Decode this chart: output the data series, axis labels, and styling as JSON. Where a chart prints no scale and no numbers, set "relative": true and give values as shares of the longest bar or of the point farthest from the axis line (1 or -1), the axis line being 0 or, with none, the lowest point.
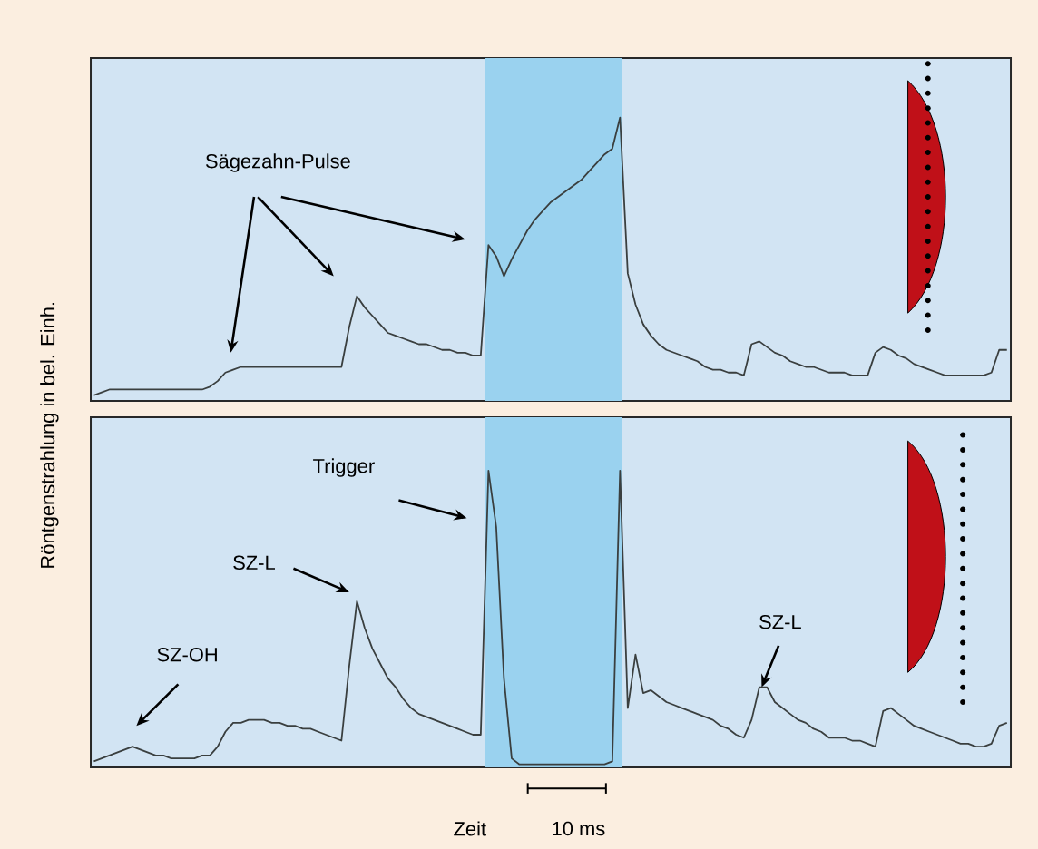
{
  "chart_data": [
    {
      "type": "line",
      "relative": true,
      "color": "#3a3f3f",
      "tick_labels": false,
      "ylabel": "Röntgenstrahlung in bel. Einh.",
      "annotations": [
        "Sägezahn-Pulse"
      ],
      "categories": [
        null,
        null,
        null,
        null,
        null,
        null,
        null,
        null,
        null,
        null,
        null,
        null,
        null,
        null,
        null,
        null,
        null,
        null,
        null,
        null,
        null,
        null,
        null,
        null,
        null,
        null,
        null,
        null,
        null,
        null,
        null,
        null,
        null,
        null,
        null,
        null,
        null,
        null,
        null,
        null,
        null,
        null,
        null,
        null,
        null,
        null,
        null,
        null,
        null,
        null,
        null,
        null,
        null,
        null,
        null,
        null,
        null,
        null,
        null,
        null,
        null,
        null,
        null,
        null,
        null,
        null,
        null,
        null,
        null,
        null,
        null,
        null,
        null,
        null,
        null,
        null,
        null,
        null,
        null,
        null,
        null,
        null,
        null,
        null,
        null,
        null,
        null,
        null,
        null,
        null,
        null,
        null,
        null,
        null,
        null,
        null,
        null,
        null,
        null,
        null,
        null,
        null,
        null,
        null,
        null,
        null,
        null,
        null,
        null,
        null,
        null,
        null,
        null,
        null,
        null,
        null,
        null,
        null,
        null
      ],
      "values": [
        0.02,
        0.03,
        0.04,
        0.04,
        0.04,
        0.04,
        0.04,
        0.04,
        0.04,
        0.04,
        0.04,
        0.04,
        0.04,
        0.04,
        0.04,
        0.05,
        0.07,
        0.1,
        0.11,
        0.12,
        0.12,
        0.12,
        0.12,
        0.12,
        0.12,
        0.12,
        0.12,
        0.12,
        0.12,
        0.12,
        0.12,
        0.12,
        0.12,
        0.26,
        0.37,
        0.33,
        0.3,
        0.27,
        0.24,
        0.23,
        0.22,
        0.21,
        0.2,
        0.2,
        0.19,
        0.18,
        0.18,
        0.17,
        0.17,
        0.16,
        0.16,
        0.55,
        0.51,
        0.44,
        0.5,
        0.55,
        0.6,
        0.64,
        0.67,
        0.7,
        0.72,
        0.74,
        0.76,
        0.78,
        0.81,
        0.84,
        0.87,
        0.89,
        1.0,
        0.45,
        0.34,
        0.27,
        0.23,
        0.2,
        0.18,
        0.17,
        0.16,
        0.15,
        0.14,
        0.12,
        0.11,
        0.11,
        0.1,
        0.1,
        0.09,
        0.2,
        0.21,
        0.19,
        0.17,
        0.16,
        0.14,
        0.13,
        0.12,
        0.12,
        0.11,
        0.1,
        0.1,
        0.1,
        0.09,
        0.09,
        0.09,
        0.17,
        0.19,
        0.18,
        0.16,
        0.15,
        0.13,
        0.12,
        0.11,
        0.1,
        0.09,
        0.09,
        0.09,
        0.09,
        0.09,
        0.09,
        0.1,
        0.18,
        0.18
      ]
    },
    {
      "type": "line",
      "relative": true,
      "color": "#3a3f3f",
      "tick_labels": false,
      "xlabel": "Zeit",
      "annotations": [
        "SZ-OH",
        "SZ-L",
        "Trigger",
        "SZ-L",
        "10 ms"
      ],
      "categories": [
        null,
        null,
        null,
        null,
        null,
        null,
        null,
        null,
        null,
        null,
        null,
        null,
        null,
        null,
        null,
        null,
        null,
        null,
        null,
        null,
        null,
        null,
        null,
        null,
        null,
        null,
        null,
        null,
        null,
        null,
        null,
        null,
        null,
        null,
        null,
        null,
        null,
        null,
        null,
        null,
        null,
        null,
        null,
        null,
        null,
        null,
        null,
        null,
        null,
        null,
        null,
        null,
        null,
        null,
        null,
        null,
        null,
        null,
        null,
        null,
        null,
        null,
        null,
        null,
        null,
        null,
        null,
        null,
        null,
        null,
        null,
        null,
        null,
        null,
        null,
        null,
        null,
        null,
        null,
        null,
        null,
        null,
        null,
        null,
        null,
        null,
        null,
        null,
        null,
        null,
        null,
        null,
        null,
        null,
        null,
        null,
        null,
        null,
        null,
        null,
        null,
        null,
        null,
        null,
        null,
        null,
        null,
        null,
        null,
        null,
        null,
        null,
        null,
        null,
        null,
        null,
        null,
        null,
        null
      ],
      "values": [
        0.02,
        0.03,
        0.04,
        0.05,
        0.06,
        0.07,
        0.06,
        0.05,
        0.04,
        0.04,
        0.03,
        0.03,
        0.03,
        0.03,
        0.04,
        0.04,
        0.07,
        0.12,
        0.15,
        0.15,
        0.16,
        0.16,
        0.16,
        0.15,
        0.15,
        0.14,
        0.14,
        0.13,
        0.13,
        0.12,
        0.11,
        0.1,
        0.09,
        0.34,
        0.56,
        0.47,
        0.4,
        0.35,
        0.3,
        0.27,
        0.23,
        0.2,
        0.18,
        0.17,
        0.16,
        0.15,
        0.14,
        0.13,
        0.12,
        0.11,
        0.11,
        1.0,
        0.81,
        0.3,
        0.03,
        0.01,
        0.01,
        0.01,
        0.01,
        0.01,
        0.01,
        0.01,
        0.01,
        0.01,
        0.01,
        0.01,
        0.01,
        0.02,
        1.0,
        0.2,
        0.38,
        0.25,
        0.26,
        0.24,
        0.22,
        0.21,
        0.2,
        0.19,
        0.18,
        0.17,
        0.16,
        0.14,
        0.13,
        0.11,
        0.1,
        0.16,
        0.27,
        0.27,
        0.22,
        0.2,
        0.18,
        0.16,
        0.15,
        0.13,
        0.12,
        0.1,
        0.1,
        0.1,
        0.09,
        0.09,
        0.08,
        0.07,
        0.19,
        0.2,
        0.18,
        0.16,
        0.14,
        0.13,
        0.12,
        0.11,
        0.1,
        0.09,
        0.08,
        0.08,
        0.07,
        0.07,
        0.08,
        0.14,
        0.15
      ]
    }
  ]
}
